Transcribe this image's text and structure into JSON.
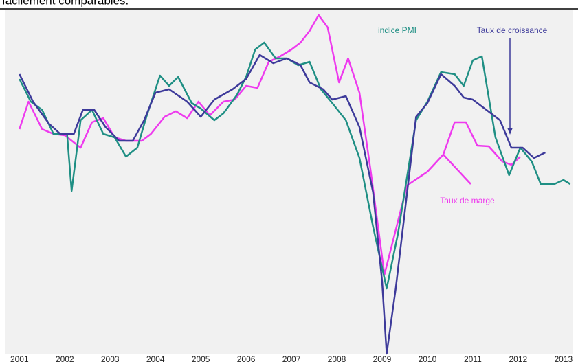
{
  "chart_data": {
    "type": "line",
    "caption": "facilement comparables.",
    "xlim": [
      2000.95,
      2013.2
    ],
    "xticks": [
      2001,
      2002,
      2003,
      2004,
      2005,
      2006,
      2007,
      2008,
      2009,
      2010,
      2011,
      2012,
      2013
    ],
    "ylim": [
      0,
      100
    ],
    "series": [
      {
        "name": "Taux de marge",
        "color": "#ee3aee",
        "x": [
          2001.0,
          2001.2,
          2001.5,
          2001.75,
          2002.0,
          2002.35,
          2002.6,
          2002.85,
          2003.1,
          2003.35,
          2003.7,
          2003.9,
          2004.2,
          2004.45,
          2004.7,
          2004.95,
          2005.2,
          2005.5,
          2005.75,
          2006.0,
          2006.25,
          2006.5,
          2006.75,
          2007.0,
          2007.2,
          2007.4,
          2007.6,
          2007.8,
          2008.05,
          2008.25,
          2008.5,
          2008.75,
          2009.05,
          2009.55,
          2010.0,
          2010.35,
          2010.6,
          2010.85,
          2011.1,
          2011.35,
          2011.65,
          2011.85,
          2012.05
        ],
        "values": [
          65.6,
          73.6,
          65.6,
          64.2,
          63.8,
          60.2,
          67.6,
          68.8,
          63.2,
          62.2,
          62.2,
          64.2,
          69.2,
          70.8,
          68.8,
          73.6,
          69.6,
          73.6,
          74.2,
          78.2,
          77.6,
          85.2,
          86.8,
          88.8,
          90.8,
          94.2,
          98.8,
          95.2,
          79.2,
          86.2,
          76.2,
          53.2,
          23.2,
          49.2,
          53.2,
          58.2,
          67.6,
          67.6,
          60.8,
          60.6,
          56.2,
          55.2,
          57.6
        ]
      },
      {
        "name": "indice PMI",
        "color": "#1f8f84",
        "x": [
          2001.0,
          2001.25,
          2001.5,
          2001.75,
          2002.05,
          2002.15,
          2002.35,
          2002.6,
          2002.85,
          2003.1,
          2003.35,
          2003.6,
          2003.8,
          2004.1,
          2004.3,
          2004.5,
          2004.8,
          2005.0,
          2005.3,
          2005.5,
          2005.8,
          2006.0,
          2006.2,
          2006.4,
          2006.65,
          2006.9,
          2007.15,
          2007.4,
          2007.65,
          2007.9,
          2008.2,
          2008.5,
          2008.8,
          2009.1,
          2009.35,
          2009.75,
          2010.0,
          2010.3,
          2010.6,
          2010.8,
          2011.0,
          2011.2,
          2011.5,
          2011.8,
          2012.05,
          2012.3,
          2012.5,
          2012.8,
          2013.0,
          2013.15
        ],
        "values": [
          80.2,
          73.6,
          71.2,
          64.2,
          64.2,
          47.6,
          68.2,
          71.2,
          64.2,
          63.2,
          57.6,
          60.2,
          69.2,
          81.2,
          78.2,
          80.8,
          73.2,
          71.6,
          68.2,
          70.2,
          75.6,
          80.8,
          88.8,
          90.8,
          86.2,
          86.2,
          84.2,
          85.2,
          77.2,
          73.2,
          68.2,
          57.2,
          37.2,
          19.2,
          35.2,
          68.2,
          73.6,
          82.2,
          81.6,
          78.2,
          85.6,
          86.8,
          63.2,
          52.2,
          60.2,
          56.2,
          49.6,
          49.6,
          50.8,
          49.6
        ]
      },
      {
        "name": "Taux de croissance",
        "color": "#3d3a9a",
        "x": [
          2001.0,
          2001.3,
          2001.65,
          2001.9,
          2002.2,
          2002.4,
          2002.65,
          2002.9,
          2003.2,
          2003.5,
          2003.75,
          2004.0,
          2004.3,
          2004.7,
          2005.0,
          2005.3,
          2005.7,
          2006.0,
          2006.3,
          2006.6,
          2006.9,
          2007.2,
          2007.4,
          2007.7,
          2007.9,
          2008.2,
          2008.5,
          2008.8,
          2009.0,
          2009.1,
          2009.3,
          2009.75,
          2010.0,
          2010.3,
          2010.6,
          2010.8,
          2011.0,
          2011.3,
          2011.6,
          2011.85,
          2012.1,
          2012.35,
          2012.6
        ],
        "values": [
          81.6,
          73.6,
          67.2,
          64.2,
          64.2,
          71.2,
          71.2,
          66.2,
          62.2,
          62.2,
          68.2,
          76.2,
          77.2,
          73.6,
          69.2,
          74.2,
          77.2,
          80.2,
          87.2,
          84.8,
          86.2,
          84.2,
          79.2,
          77.2,
          74.2,
          75.2,
          66.2,
          47.2,
          21.2,
          0.2,
          19.2,
          69.2,
          73.2,
          81.6,
          78.2,
          74.8,
          74.2,
          71.2,
          68.2,
          60.2,
          60.2,
          57.2,
          58.8
        ]
      }
    ]
  }
}
